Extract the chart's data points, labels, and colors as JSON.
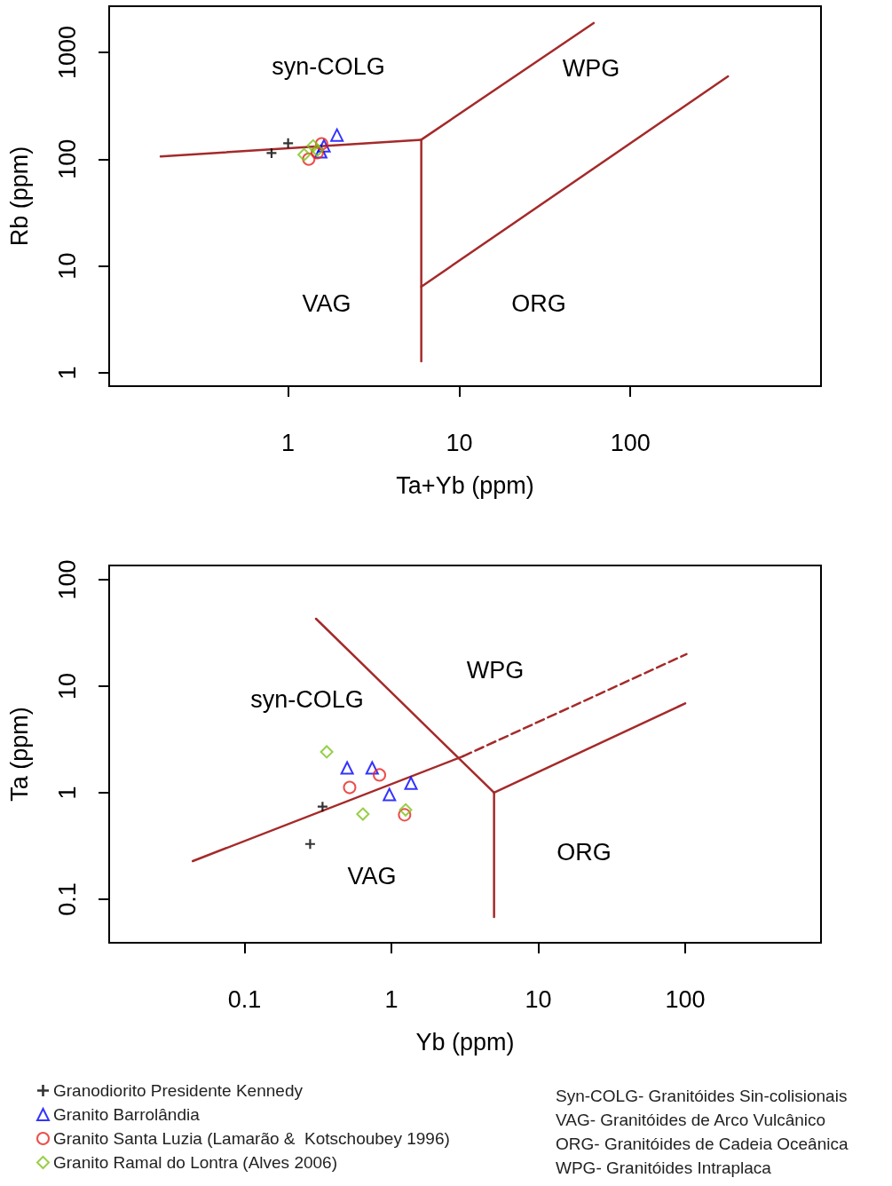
{
  "chart_data": [
    {
      "type": "scatter",
      "xlabel": "Ta+Yb (ppm)",
      "ylabel": "Rb (ppm)",
      "log": "xy",
      "grid": false,
      "xlim": [
        0.09,
        1300
      ],
      "ylim": [
        0.75,
        2700
      ],
      "xticks": [
        1,
        10,
        100
      ],
      "yticks": [
        1,
        10,
        100,
        1000
      ],
      "series": [
        {
          "type": "line",
          "color": "#a52a2a",
          "x": [
            0.18,
            6.0
          ],
          "values": [
            106,
            152
          ]
        },
        {
          "type": "line",
          "color": "#a52a2a",
          "x": [
            6.0,
            61
          ],
          "values": [
            152,
            1880
          ]
        },
        {
          "type": "line",
          "color": "#a52a2a",
          "x": [
            6.0,
            6.0
          ],
          "values": [
            152,
            1.28
          ]
        },
        {
          "type": "line",
          "color": "#a52a2a",
          "x": [
            6.0,
            372
          ],
          "values": [
            6.4,
            596
          ]
        },
        {
          "marker": "cross",
          "color": "#000000",
          "x": [
            0.8,
            1.0
          ],
          "values": [
            114,
            141
          ]
        },
        {
          "marker": "triangle",
          "color": "#0000ff",
          "x": [
            1.93,
            1.62,
            1.55
          ],
          "values": [
            168,
            133,
            117
          ]
        },
        {
          "marker": "circle",
          "color": "#e8231e",
          "x": [
            1.32,
            1.57,
            1.48
          ],
          "values": [
            100,
            139,
            115
          ]
        },
        {
          "marker": "diamond",
          "color": "#7dc31c",
          "x": [
            1.24,
            1.4,
            1.48
          ],
          "values": [
            110,
            133,
            121
          ]
        }
      ],
      "annotations": [
        "syn-COLG",
        "WPG",
        "VAG",
        "ORG"
      ]
    },
    {
      "type": "scatter",
      "xlabel": "Yb (ppm)",
      "ylabel": "Ta (ppm)",
      "log": "xy",
      "grid": false,
      "legend": "bottom left",
      "xlim": [
        0.012,
        840
      ],
      "ylim": [
        0.039,
        136
      ],
      "xticks": [
        0.1,
        1,
        10,
        100
      ],
      "yticks": [
        0.1,
        1,
        10,
        100
      ],
      "series": [
        {
          "type": "line",
          "color": "#a52a2a",
          "x": [
            0.0445,
            3.08
          ],
          "values": [
            0.228,
            2.2
          ]
        },
        {
          "type": "line",
          "color": "#a52a2a",
          "line_style": "dashed",
          "x": [
            3.08,
            102
          ],
          "values": [
            2.2,
            20
          ]
        },
        {
          "type": "line",
          "color": "#a52a2a",
          "x": [
            0.307,
            5.0
          ],
          "values": [
            43,
            1.0
          ]
        },
        {
          "type": "line",
          "color": "#a52a2a",
          "x": [
            5.0,
            5.0
          ],
          "values": [
            1.0,
            0.068
          ]
        },
        {
          "type": "line",
          "color": "#a52a2a",
          "x": [
            5.0,
            100
          ],
          "values": [
            1.0,
            6.9
          ]
        },
        {
          "name": "Granodiorito Presidente Kennedy",
          "marker": "cross",
          "color": "#000000",
          "x": [
            0.34,
            0.28
          ],
          "values": [
            0.74,
            0.33
          ]
        },
        {
          "name": "Granito Barrolândia",
          "marker": "triangle",
          "color": "#0000ff",
          "x": [
            0.5,
            0.74,
            1.36,
            0.97
          ],
          "values": [
            1.71,
            1.71,
            1.23,
            0.96
          ]
        },
        {
          "name": "Granito Santa Luzia (Lamarão &  Kotschoubey 1996)",
          "marker": "circle",
          "color": "#e8231e",
          "x": [
            0.52,
            0.83,
            1.23
          ],
          "values": [
            1.12,
            1.47,
            0.62
          ]
        },
        {
          "name": "Granito Ramal do Lontra (Alves 2006)",
          "marker": "diamond",
          "color": "#7dc31c",
          "x": [
            0.363,
            0.64,
            1.25
          ],
          "values": [
            2.42,
            0.63,
            0.69
          ]
        }
      ],
      "annotations": [
        "WPG",
        "syn-COLG",
        "VAG",
        "ORG",
        "Syn-COLG- Granitóides Sin-colisionais",
        "VAG- Granitóides de Arco Vulcânico",
        "ORG- Granitóides de Cadeia Oceânica",
        "WPG- Granitóides Intraplaca"
      ]
    }
  ]
}
